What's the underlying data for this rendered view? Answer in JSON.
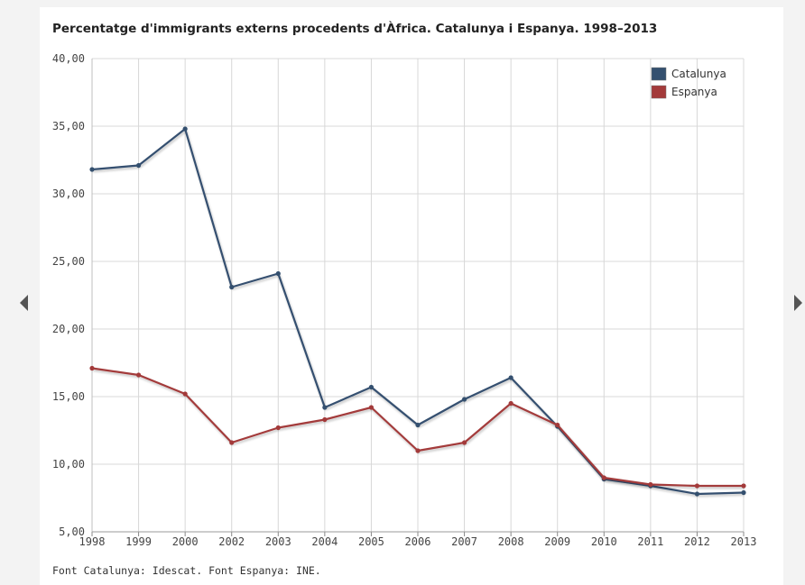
{
  "navigation": {
    "prev_icon": "chevron-left-icon",
    "next_icon": "chevron-right-icon"
  },
  "source": "Font Catalunya: Idescat. Font Espanya: INE.",
  "chart_data": {
    "type": "line",
    "title": "Percentatge d'immigrants externs procedents d'Àfrica. Catalunya i Espanya. 1998–2013",
    "xlabel": "",
    "ylabel": "",
    "x": [
      1998,
      1999,
      2000,
      2002,
      2003,
      2004,
      2005,
      2006,
      2007,
      2008,
      2009,
      2010,
      2011,
      2012,
      2013
    ],
    "x_labels": [
      "1998",
      "1999",
      "2000",
      "2002",
      "2003",
      "2004",
      "2005",
      "2006",
      "2007",
      "2008",
      "2009",
      "2010",
      "2011",
      "2012",
      "2013"
    ],
    "ylim": [
      5,
      40
    ],
    "yticks": [
      5,
      10,
      15,
      20,
      25,
      30,
      35,
      40
    ],
    "ytick_labels": [
      "5,00",
      "10,00",
      "15,00",
      "20,00",
      "25,00",
      "30,00",
      "35,00",
      "40,00"
    ],
    "grid": true,
    "legend_position": "top-right",
    "series": [
      {
        "name": "Catalunya",
        "color": "#34506f",
        "values": [
          31.8,
          32.1,
          34.8,
          23.1,
          24.1,
          14.2,
          15.7,
          12.9,
          14.8,
          16.4,
          12.8,
          8.9,
          8.4,
          7.8,
          7.9
        ]
      },
      {
        "name": "Espanya",
        "color": "#a33a3a",
        "values": [
          17.1,
          16.6,
          15.2,
          11.6,
          12.7,
          13.3,
          14.2,
          11.0,
          11.6,
          14.5,
          12.9,
          9.0,
          8.5,
          8.4,
          8.4
        ]
      }
    ]
  }
}
